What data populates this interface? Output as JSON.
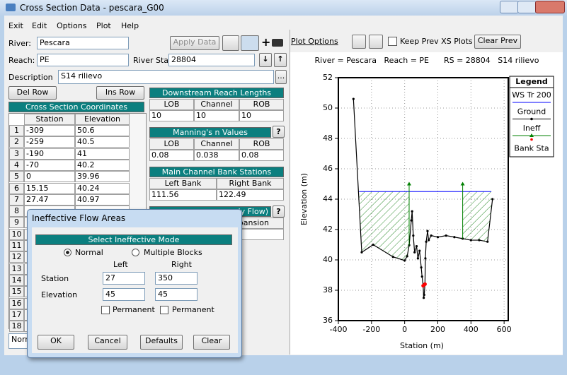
{
  "window": {
    "title": "Cross Section Data - pescara_G00"
  },
  "menu": [
    "Exit",
    "Edit",
    "Options",
    "Plot",
    "Help"
  ],
  "form": {
    "river_label": "River:",
    "river": "Pescara",
    "apply_data": "Apply Data",
    "reach_label": "Reach:",
    "reach": "PE",
    "river_sta_label": "River Sta.:",
    "river_sta": "28804",
    "description_label": "Description",
    "description": "S14 rilievo",
    "more": "...",
    "del_row": "Del Row",
    "ins_row": "Ins Row"
  },
  "coordinates": {
    "title": "Cross Section Coordinates",
    "columns": [
      "Station",
      "Elevation"
    ],
    "row_numbers": [
      1,
      2,
      3,
      4,
      5,
      6,
      7,
      8,
      9,
      10,
      11,
      12,
      13,
      14,
      15,
      16,
      17,
      18
    ],
    "rows": [
      [
        -309,
        50.6
      ],
      [
        -259,
        40.5
      ],
      [
        -190,
        41
      ],
      [
        -70,
        40.2
      ],
      [
        0,
        39.96
      ],
      [
        15.15,
        40.24
      ],
      [
        27.47,
        40.97
      ]
    ]
  },
  "reach_lengths": {
    "title": "Downstream Reach Lengths",
    "columns": [
      "LOB",
      "Channel",
      "ROB"
    ],
    "values": [
      10,
      10,
      10
    ]
  },
  "mannings": {
    "title": "Manning's n Values",
    "help": "?",
    "columns": [
      "LOB",
      "Channel",
      "ROB"
    ],
    "values": [
      0.08,
      0.038,
      0.08
    ]
  },
  "bank_stations": {
    "title": "Main Channel Bank Stations",
    "columns": [
      "Left Bank",
      "Right Bank"
    ],
    "values": [
      111.56,
      122.49
    ]
  },
  "partial": {
    "header": "dy Flow)",
    "help": "?",
    "column": "xpansion",
    "note": "Norm"
  },
  "plot_toolbar": {
    "plot_options": "Plot Options",
    "keep_prev": "Keep Prev XS Plots",
    "clear_prev": "Clear Prev"
  },
  "plot": {
    "type": "line",
    "title": "River = Pescara   Reach = PE      RS = 28804   S14 rilievo",
    "xlabel": "Station (m)",
    "ylabel": "Elevation (m)",
    "xlim": [
      -400,
      625
    ],
    "ylim": [
      36,
      52
    ],
    "xticks": [
      -400,
      -200,
      0,
      200,
      400,
      600
    ],
    "yticks": [
      36,
      38,
      40,
      42,
      44,
      46,
      48,
      50,
      52
    ],
    "grid": true,
    "legend": {
      "title": "Legend",
      "position": "upper right"
    },
    "series": [
      {
        "name": "WS Tr 200",
        "color": "#0000ff",
        "x": [
          -275,
          523
        ],
        "y": [
          44.5,
          44.5
        ]
      },
      {
        "name": "Ground",
        "color": "#000000",
        "x": [
          -309,
          -259,
          -190,
          -70,
          0,
          15.15,
          27.47,
          40,
          45,
          52,
          60,
          72,
          80,
          90,
          100,
          105,
          111.56,
          115,
          118,
          122.49,
          125,
          130,
          138,
          145,
          160,
          200,
          250,
          300,
          350,
          400,
          450,
          500,
          530
        ],
        "y": [
          50.6,
          40.5,
          41,
          40.2,
          39.96,
          40.24,
          40.97,
          42.6,
          43.2,
          41.6,
          40.5,
          40.9,
          40.1,
          40.6,
          39.5,
          38.9,
          38.3,
          37.5,
          37.7,
          38.4,
          40.1,
          41.2,
          41.9,
          41.3,
          41.6,
          41.5,
          41.6,
          41.5,
          41.4,
          41.3,
          41.3,
          41.2,
          44
        ]
      },
      {
        "name": "Ineff",
        "color": "#008000",
        "x": [
          27,
          350
        ],
        "y": [
          45,
          45
        ]
      },
      {
        "name": "Bank Sta",
        "color": "#ff0000",
        "x": [
          111.56,
          122.49
        ],
        "y": [
          38.3,
          38.4
        ]
      }
    ]
  },
  "dialog": {
    "title": "Ineffective Flow Areas",
    "mode_title": "Select Ineffective Mode",
    "modes": [
      "Normal",
      "Multiple Blocks"
    ],
    "columns": [
      "Left",
      "Right"
    ],
    "station_label": "Station",
    "station": [
      27,
      350
    ],
    "elevation_label": "Elevation",
    "elevation": [
      45,
      45
    ],
    "permanent": [
      "Permanent",
      "Permanent"
    ],
    "buttons": [
      "OK",
      "Cancel",
      "Defaults",
      "Clear"
    ]
  }
}
